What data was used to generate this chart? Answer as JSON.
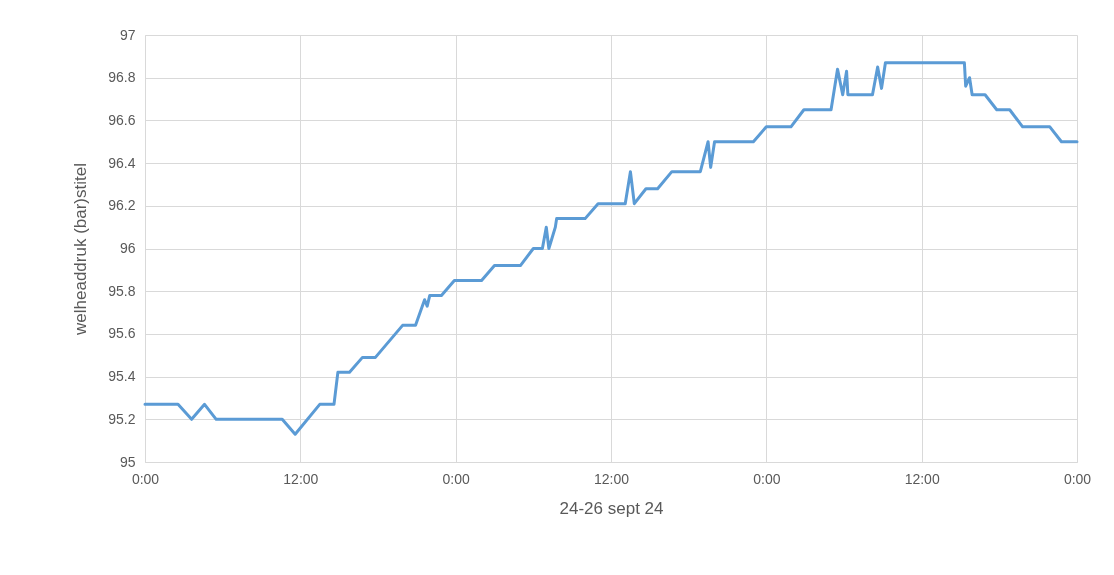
{
  "chart_data": {
    "type": "line",
    "xlabel": "24-26 sept 24",
    "ylabel": "welheaddruk (bar)stitel",
    "x": [
      "--09-24T00:00",
      "--09-24T02:33",
      "--09-24T03:36",
      "--09-24T04:36",
      "--09-24T05:30",
      "--09-24T10:36",
      "--09-24T11:36",
      "--09-24T13:30",
      "--09-24T14:36",
      "--09-24T14:54",
      "--09-24T15:48",
      "--09-24T16:48",
      "--09-24T17:48",
      "--09-24T19:54",
      "--09-24T20:54",
      "--09-24T21:36",
      "--09-24T21:48",
      "--09-24T22:00",
      "--09-24T22:54",
      "--09-24T23:54",
      "--09-25T02:00",
      "--09-25T03:00",
      "--09-25T05:00",
      "--09-25T06:00",
      "--09-25T06:42",
      "--09-25T07:00",
      "--09-25T07:12",
      "--09-25T07:24",
      "--09-25T07:42",
      "--09-25T07:48",
      "--09-25T10:00",
      "--09-25T11:00",
      "--09-25T13:06",
      "--09-25T13:30",
      "--09-25T13:48",
      "--09-25T14:42",
      "--09-25T15:36",
      "--09-25T16:42",
      "--09-25T18:54",
      "--09-25T19:30",
      "--09-25T19:42",
      "--09-25T20:00",
      "--09-25T23:00",
      "--09-26T00:00",
      "--09-26T01:54",
      "--09-26T02:54",
      "--09-26T05:00",
      "--09-26T05:30",
      "--09-26T05:54",
      "--09-26T06:12",
      "--09-26T06:18",
      "--09-26T08:12",
      "--09-26T08:36",
      "--09-26T08:54",
      "--09-26T09:12",
      "--09-26T15:18",
      "--09-26T15:24",
      "--09-26T15:42",
      "--09-26T15:54",
      "--09-26T16:54",
      "--09-26T17:48",
      "--09-26T18:48",
      "--09-26T19:48",
      "--09-26T21:54",
      "--09-26T22:48",
      "--09-27T00:00"
    ],
    "series": [
      {
        "color": "#5b9bd5",
        "values": [
          95.27,
          95.27,
          95.2,
          95.27,
          95.2,
          95.2,
          95.13,
          95.27,
          95.27,
          95.42,
          95.42,
          95.49,
          95.49,
          95.64,
          95.64,
          95.76,
          95.73,
          95.78,
          95.78,
          95.85,
          95.85,
          95.92,
          95.92,
          96.0,
          96.0,
          96.1,
          96.0,
          96.04,
          96.1,
          96.14,
          96.14,
          96.21,
          96.21,
          96.36,
          96.21,
          96.28,
          96.28,
          96.36,
          96.36,
          96.5,
          96.38,
          96.5,
          96.5,
          96.57,
          96.57,
          96.65,
          96.65,
          96.84,
          96.72,
          96.83,
          96.72,
          96.72,
          96.85,
          96.75,
          96.87,
          96.87,
          96.76,
          96.8,
          96.72,
          96.72,
          96.65,
          96.65,
          96.57,
          96.57,
          96.5,
          96.5
        ]
      }
    ],
    "xlim": [
      "--09-24T00:00",
      "--09-27T00:00"
    ],
    "xticks": [
      {
        "value": "--09-24T00:00",
        "label": "0:00"
      },
      {
        "value": "--09-24T12:00",
        "label": "12:00"
      },
      {
        "value": "--09-25T00:00",
        "label": "0:00"
      },
      {
        "value": "--09-25T12:00",
        "label": "12:00"
      },
      {
        "value": "--09-26T00:00",
        "label": "0:00"
      },
      {
        "value": "--09-26T12:00",
        "label": "12:00"
      },
      {
        "value": "--09-27T00:00",
        "label": "0:00"
      }
    ],
    "ylim": [
      95,
      97
    ],
    "yticks": [
      95,
      95.2,
      95.4,
      95.6,
      95.8,
      96,
      96.2,
      96.4,
      96.6,
      96.8,
      97
    ],
    "grid": true,
    "marker": "none",
    "line_style": "solid"
  }
}
